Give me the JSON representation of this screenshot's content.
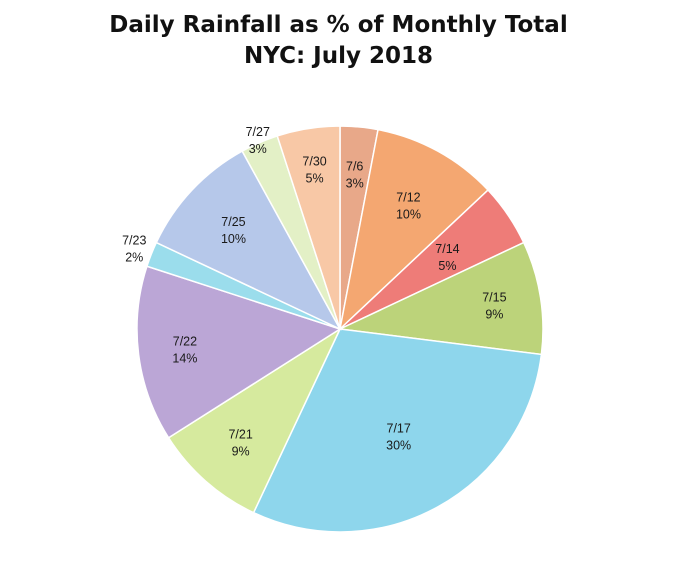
{
  "chart_data": {
    "type": "pie",
    "title": "Daily Rainfall as % of Monthly Total",
    "subtitle": "NYC: July 2018",
    "slices": [
      {
        "name": "7/6",
        "value": 3,
        "label": "3%",
        "color": "#E8A889"
      },
      {
        "name": "7/12",
        "value": 10,
        "label": "10%",
        "color": "#F4A771"
      },
      {
        "name": "7/14",
        "value": 5,
        "label": "5%",
        "color": "#EE7C78"
      },
      {
        "name": "7/15",
        "value": 9,
        "label": "9%",
        "color": "#BCD37A"
      },
      {
        "name": "7/17",
        "value": 30,
        "label": "30%",
        "color": "#8ED6EC"
      },
      {
        "name": "7/21",
        "value": 9,
        "label": "9%",
        "color": "#D6EA9E"
      },
      {
        "name": "7/22",
        "value": 14,
        "label": "14%",
        "color": "#BBA6D6"
      },
      {
        "name": "7/23",
        "value": 2,
        "label": "2%",
        "color": "#9BDDEC"
      },
      {
        "name": "7/25",
        "value": 10,
        "label": "10%",
        "color": "#B6C8EA"
      },
      {
        "name": "7/27",
        "value": 3,
        "label": "3%",
        "color": "#E3F0C6"
      },
      {
        "name": "7/30",
        "value": 5,
        "label": "5%",
        "color": "#F8C8A6"
      }
    ],
    "start_angle_deg": 0,
    "direction": "clockwise",
    "legend": "none"
  }
}
